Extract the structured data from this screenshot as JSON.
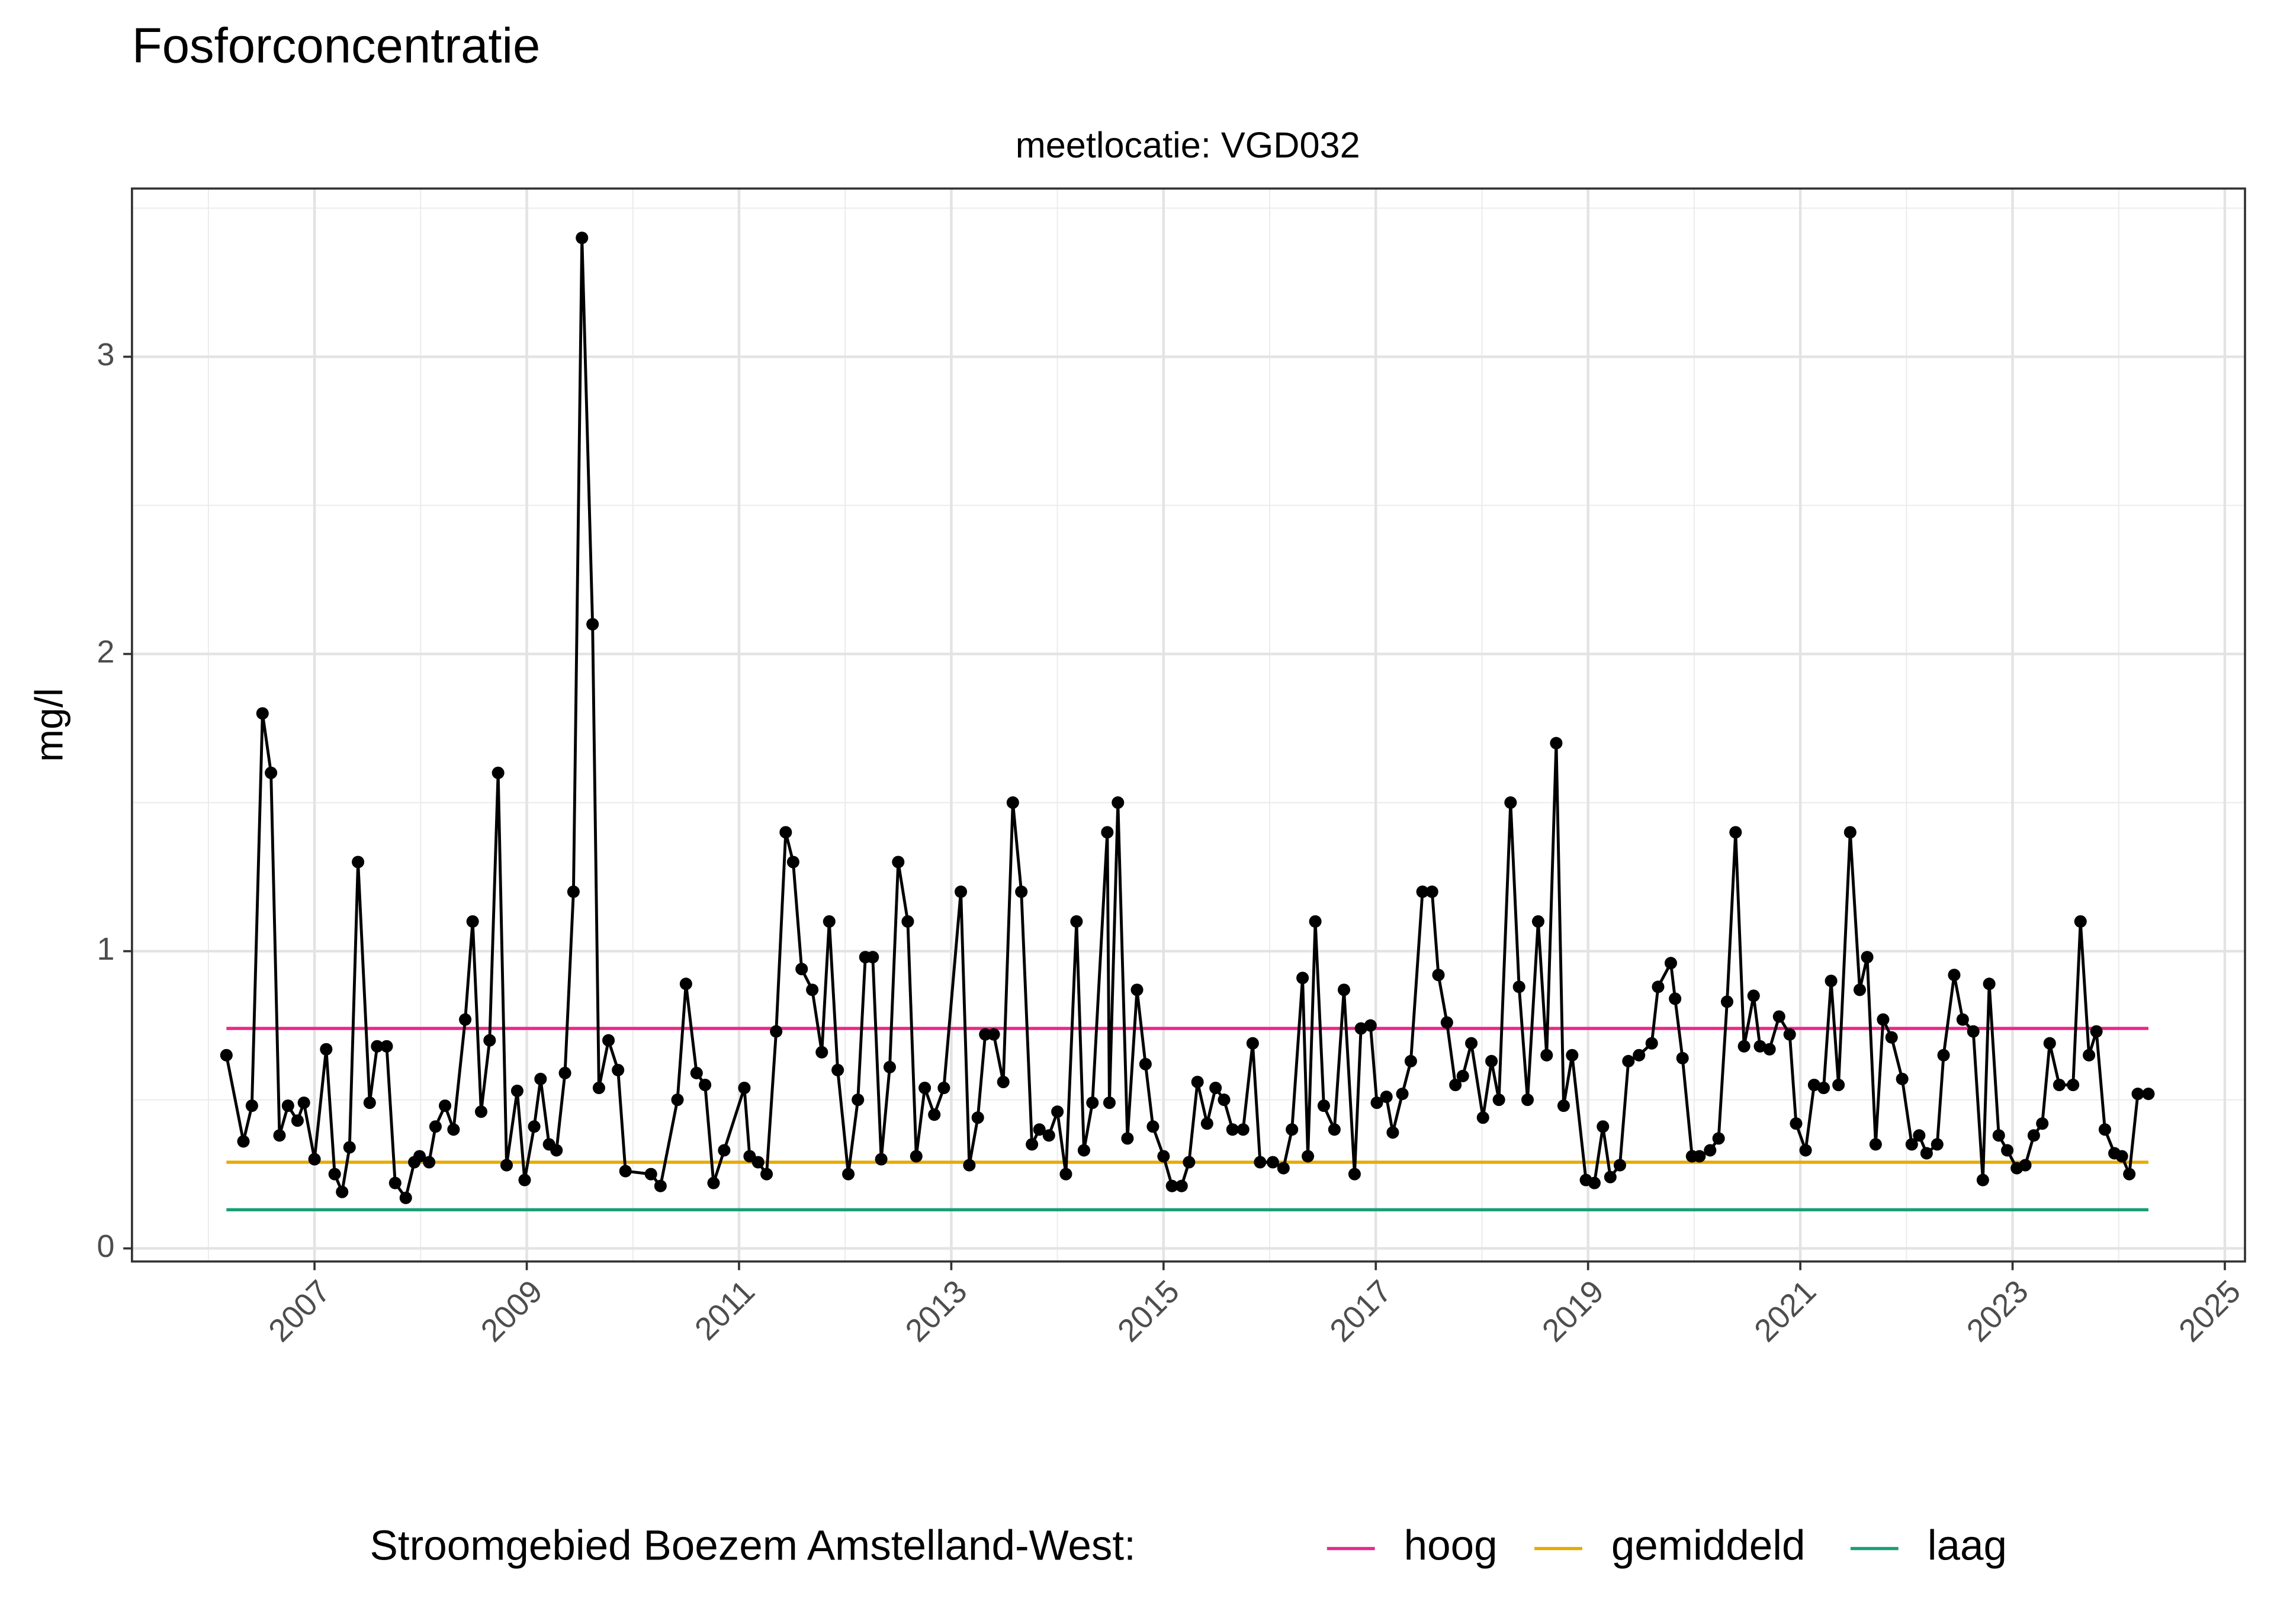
{
  "chart_data": {
    "type": "line",
    "title": "Fosforconcentratie",
    "subtitle": "meetlocatie: VGD032",
    "ylabel": "mg/l",
    "legend_title": "Stroomgebied Boezem Amstelland-West:",
    "legend_position": "bottom",
    "grid": true,
    "color": "#000000",
    "xlim": [
      2005.28,
      2025.19
    ],
    "ylim": [
      -0.044,
      3.566
    ],
    "xticks": [
      2007,
      2009,
      2011,
      2013,
      2015,
      2017,
      2019,
      2021,
      2023,
      2025
    ],
    "xminorticks": [
      2006,
      2008,
      2010,
      2012,
      2014,
      2016,
      2018,
      2020,
      2022,
      2024
    ],
    "yticks": [
      0,
      1,
      2,
      3
    ],
    "yminorticks": [
      0.5,
      1.5,
      2.5,
      3.5
    ],
    "reference_x": [
      2006.17,
      2024.28
    ],
    "reference_lines": [
      {
        "name": "hoog",
        "color": "#e7298a",
        "value": 0.74
      },
      {
        "name": "gemiddeld",
        "color": "#e6ab02",
        "value": 0.29
      },
      {
        "name": "laag",
        "color": "#1b9e77",
        "value": 0.13
      }
    ],
    "x": [
      2006.17,
      2006.33,
      2006.41,
      2006.51,
      2006.59,
      2006.67,
      2006.75,
      2006.84,
      2006.9,
      2007.0,
      2007.11,
      2007.19,
      2007.26,
      2007.33,
      2007.41,
      2007.52,
      2007.59,
      2007.68,
      2007.76,
      2007.86,
      2007.94,
      2007.99,
      2008.08,
      2008.14,
      2008.23,
      2008.31,
      2008.42,
      2008.49,
      2008.57,
      2008.65,
      2008.73,
      2008.81,
      2008.91,
      2008.98,
      2009.07,
      2009.13,
      2009.21,
      2009.28,
      2009.36,
      2009.44,
      2009.52,
      2009.62,
      2009.68,
      2009.77,
      2009.86,
      2009.93,
      2010.17,
      2010.26,
      2010.42,
      2010.5,
      2010.6,
      2010.68,
      2010.76,
      2010.86,
      2011.05,
      2011.1,
      2011.18,
      2011.26,
      2011.35,
      2011.44,
      2011.51,
      2011.59,
      2011.69,
      2011.78,
      2011.85,
      2011.93,
      2012.03,
      2012.12,
      2012.19,
      2012.26,
      2012.34,
      2012.42,
      2012.5,
      2012.59,
      2012.67,
      2012.75,
      2012.84,
      2012.93,
      2013.09,
      2013.17,
      2013.25,
      2013.32,
      2013.4,
      2013.49,
      2013.58,
      2013.66,
      2013.76,
      2013.83,
      2013.92,
      2014.0,
      2014.08,
      2014.18,
      2014.25,
      2014.33,
      2014.47,
      2014.49,
      2014.57,
      2014.66,
      2014.75,
      2014.83,
      2014.9,
      2015.0,
      2015.08,
      2015.17,
      2015.24,
      2015.32,
      2015.41,
      2015.49,
      2015.57,
      2015.65,
      2015.75,
      2015.84,
      2015.91,
      2016.03,
      2016.13,
      2016.21,
      2016.31,
      2016.36,
      2016.43,
      2016.51,
      2016.61,
      2016.7,
      2016.8,
      2016.86,
      2016.95,
      2017.01,
      2017.1,
      2017.16,
      2017.25,
      2017.33,
      2017.44,
      2017.53,
      2017.59,
      2017.67,
      2017.75,
      2017.82,
      2017.9,
      2018.01,
      2018.09,
      2018.16,
      2018.27,
      2018.35,
      2018.43,
      2018.53,
      2018.61,
      2018.7,
      2018.77,
      2018.85,
      2018.98,
      2019.06,
      2019.14,
      2019.21,
      2019.3,
      2019.38,
      2019.48,
      2019.6,
      2019.66,
      2019.78,
      2019.82,
      2019.89,
      2019.98,
      2020.05,
      2020.15,
      2020.23,
      2020.31,
      2020.39,
      2020.47,
      2020.56,
      2020.62,
      2020.71,
      2020.8,
      2020.9,
      2020.96,
      2021.05,
      2021.13,
      2021.22,
      2021.29,
      2021.36,
      2021.47,
      2021.56,
      2021.63,
      2021.71,
      2021.78,
      2021.86,
      2021.96,
      2022.05,
      2022.12,
      2022.19,
      2022.29,
      2022.35,
      2022.45,
      2022.53,
      2022.63,
      2022.72,
      2022.78,
      2022.87,
      2022.95,
      2023.04,
      2023.12,
      2023.2,
      2023.28,
      2023.35,
      2023.44,
      2023.57,
      2023.64,
      2023.72,
      2023.79,
      2023.87,
      2023.96,
      2024.03,
      2024.1,
      2024.18,
      2024.28
    ],
    "values": [
      0.65,
      0.36,
      0.48,
      1.8,
      1.6,
      0.38,
      0.48,
      0.43,
      0.49,
      0.3,
      0.67,
      0.25,
      0.19,
      0.34,
      1.3,
      0.49,
      0.68,
      0.68,
      0.22,
      0.17,
      0.29,
      0.31,
      0.29,
      0.41,
      0.48,
      0.4,
      0.77,
      1.1,
      0.46,
      0.7,
      1.6,
      0.28,
      0.53,
      0.23,
      0.41,
      0.57,
      0.35,
      0.33,
      0.59,
      1.2,
      3.4,
      2.1,
      0.54,
      0.7,
      0.6,
      0.26,
      0.25,
      0.21,
      0.5,
      0.89,
      0.59,
      0.55,
      0.22,
      0.33,
      0.54,
      0.31,
      0.29,
      0.25,
      0.73,
      1.4,
      1.3,
      0.94,
      0.87,
      0.66,
      1.1,
      0.6,
      0.25,
      0.5,
      0.98,
      0.98,
      0.3,
      0.61,
      1.3,
      1.1,
      0.31,
      0.54,
      0.45,
      0.54,
      1.2,
      0.28,
      0.44,
      0.72,
      0.72,
      0.56,
      1.5,
      1.2,
      0.35,
      0.4,
      0.38,
      0.46,
      0.25,
      1.1,
      0.33,
      0.49,
      1.4,
      0.49,
      1.5,
      0.37,
      0.87,
      0.62,
      0.41,
      0.31,
      0.21,
      0.21,
      0.29,
      0.56,
      0.42,
      0.54,
      0.5,
      0.4,
      0.4,
      0.69,
      0.29,
      0.29,
      0.27,
      0.4,
      0.91,
      0.31,
      1.1,
      0.48,
      0.4,
      0.87,
      0.25,
      0.74,
      0.75,
      0.49,
      0.51,
      0.39,
      0.52,
      0.63,
      1.2,
      1.2,
      0.92,
      0.76,
      0.55,
      0.58,
      0.69,
      0.44,
      0.63,
      0.5,
      1.5,
      0.88,
      0.5,
      1.1,
      0.65,
      1.7,
      0.48,
      0.65,
      0.23,
      0.22,
      0.41,
      0.24,
      0.28,
      0.63,
      0.65,
      0.69,
      0.88,
      0.96,
      0.84,
      0.64,
      0.31,
      0.31,
      0.33,
      0.37,
      0.83,
      1.4,
      0.68,
      0.85,
      0.68,
      0.67,
      0.78,
      0.72,
      0.42,
      0.33,
      0.55,
      0.54,
      0.9,
      0.55,
      1.4,
      0.87,
      0.98,
      0.35,
      0.77,
      0.71,
      0.57,
      0.35,
      0.38,
      0.32,
      0.35,
      0.65,
      0.92,
      0.77,
      0.73,
      0.23,
      0.89,
      0.38,
      0.33,
      0.27,
      0.28,
      0.38,
      0.42,
      0.69,
      0.55,
      0.55,
      1.1,
      0.65,
      0.73,
      0.4,
      0.32,
      0.31,
      0.25,
      0.52,
      0.52
    ]
  }
}
